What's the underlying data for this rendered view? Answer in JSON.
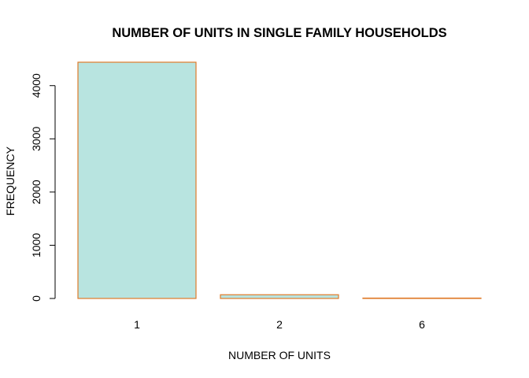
{
  "chart_data": {
    "type": "bar",
    "title": "NUMBER OF UNITS IN SINGLE FAMILY HOUSEHOLDS",
    "xlabel": "NUMBER OF UNITS",
    "ylabel": "FREQUENCY",
    "categories": [
      "1",
      "2",
      "6"
    ],
    "values": [
      4440,
      70,
      3
    ],
    "ylim": [
      0,
      4440
    ],
    "yticks": [
      0,
      1000,
      2000,
      3000,
      4000
    ],
    "grid": false,
    "legend": "none",
    "colors": {
      "bar_fill": "#b8e4e0",
      "bar_stroke": "#e07b2a",
      "axis": "#000000"
    }
  }
}
